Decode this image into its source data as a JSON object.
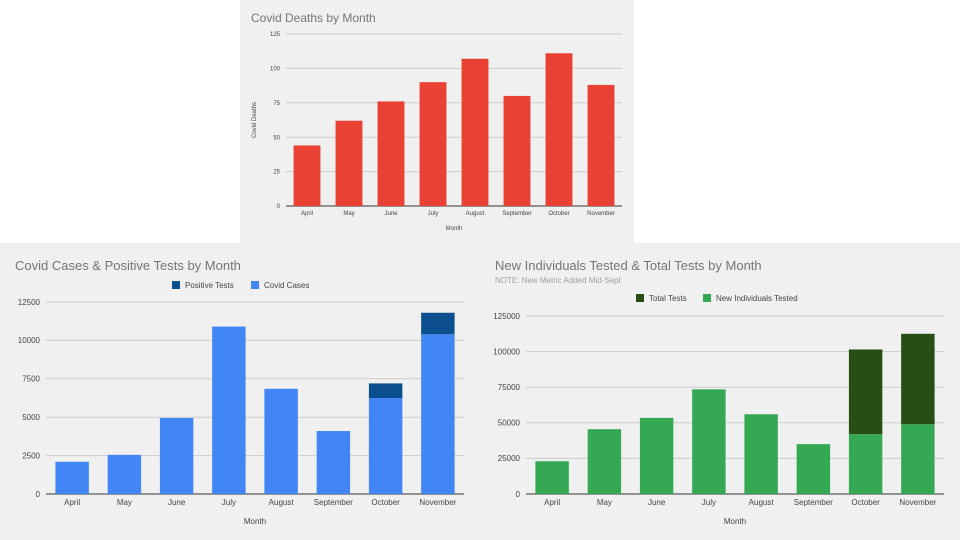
{
  "chart_data": [
    {
      "type": "bar",
      "title": "Covid Deaths by Month",
      "xlabel": "Month",
      "ylabel": "Covid Deaths",
      "ylim": [
        0,
        125
      ],
      "yticks": [
        "0",
        "25",
        "50",
        "75",
        "100",
        "125"
      ],
      "grid": true,
      "legend": "none",
      "categories": [
        "April",
        "May",
        "June",
        "July",
        "August",
        "September",
        "October",
        "November"
      ],
      "series": [
        {
          "values": [
            44,
            62,
            76,
            90,
            107,
            80,
            111,
            88
          ],
          "color": "#e94235"
        }
      ]
    },
    {
      "type": "bar",
      "stacked": true,
      "title": "Covid Cases & Positive Tests by Month",
      "xlabel": "Month",
      "ylabel": "",
      "ylim": [
        0,
        12500
      ],
      "yticks": [
        "0",
        "2500",
        "5000",
        "7500",
        "10000",
        "12500"
      ],
      "grid": true,
      "legend": "top",
      "categories": [
        "April",
        "May",
        "June",
        "July",
        "August",
        "September",
        "October",
        "November"
      ],
      "series": [
        {
          "name": "Covid Cases",
          "values": [
            2100,
            2550,
            4950,
            10900,
            6850,
            4100,
            6250,
            10400
          ],
          "color": "#4285f4"
        },
        {
          "name": "Positive Tests",
          "values": [
            0,
            0,
            0,
            0,
            0,
            0,
            950,
            1400
          ],
          "color": "#0b4f8f"
        }
      ],
      "legend_order": [
        "Positive Tests",
        "Covid Cases"
      ]
    },
    {
      "type": "bar",
      "stacked": true,
      "title": "New Individuals Tested & Total Tests by Month",
      "subtitle": "NOTE: New Metric Added Mid-Sept",
      "xlabel": "Month",
      "ylabel": "",
      "ylim": [
        0,
        125000
      ],
      "yticks": [
        "0",
        "25000",
        "50000",
        "75000",
        "100000",
        "125000"
      ],
      "grid": true,
      "legend": "top",
      "categories": [
        "April",
        "May",
        "June",
        "July",
        "August",
        "September",
        "October",
        "November"
      ],
      "series": [
        {
          "name": "New Individuals Tested",
          "values": [
            23000,
            45500,
            53500,
            73500,
            56000,
            35000,
            42000,
            49000
          ],
          "color": "#34a853"
        },
        {
          "name": "Total Tests",
          "values": [
            0,
            0,
            0,
            0,
            0,
            0,
            59500,
            63500
          ],
          "color": "#274e13"
        }
      ],
      "legend_order": [
        "Total Tests",
        "New Individuals Tested"
      ]
    }
  ]
}
